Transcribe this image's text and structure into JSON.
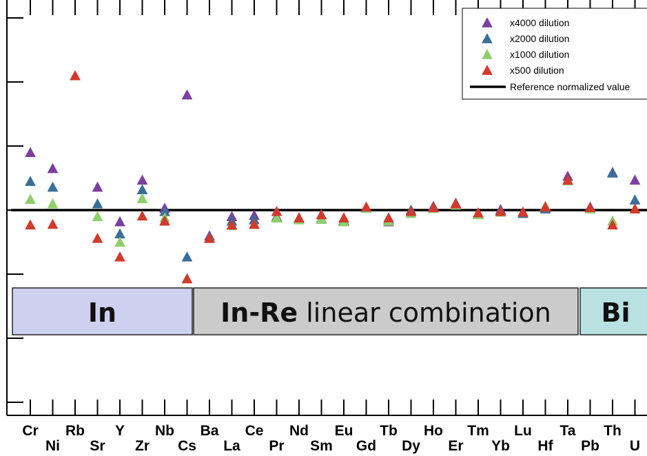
{
  "chart_data": {
    "type": "scatter",
    "categories": [
      "Cr",
      "Ni",
      "Rb",
      "Sr",
      "Y",
      "Zr",
      "Nb",
      "Cs",
      "Ba",
      "La",
      "Ce",
      "Pr",
      "Nd",
      "Sm",
      "Eu",
      "Gd",
      "Tb",
      "Dy",
      "Ho",
      "Er",
      "Tm",
      "Yb",
      "Lu",
      "Hf",
      "Ta",
      "Pb",
      "Th",
      "U"
    ],
    "ylim": [
      -3,
      3
    ],
    "series": [
      {
        "name": "x4000 dilution",
        "color": "#7b3f9e",
        "values": [
          0.9,
          0.65,
          null,
          0.36,
          -0.18,
          0.47,
          0.03,
          1.8,
          -0.4,
          -0.1,
          -0.08,
          -0.1,
          -0.12,
          -0.13,
          -0.17,
          0.04,
          -0.18,
          0.0,
          0.06,
          0.11,
          -0.06,
          0.01,
          -0.03,
          0.04,
          0.53,
          0.04,
          0.59,
          0.47
        ]
      },
      {
        "name": "x2000 dilution",
        "color": "#3a6e99",
        "values": [
          0.45,
          0.36,
          null,
          0.1,
          -0.37,
          0.32,
          -0.02,
          -0.73,
          -0.43,
          -0.17,
          -0.15,
          -0.12,
          -0.13,
          -0.14,
          -0.16,
          0.03,
          -0.15,
          0.0,
          0.05,
          0.09,
          -0.05,
          0.0,
          -0.05,
          0.02,
          0.46,
          0.05,
          0.58,
          0.16
        ]
      },
      {
        "name": "x1000 dilution",
        "color": "#8fcf6b",
        "values": [
          0.17,
          0.1,
          null,
          -0.1,
          -0.5,
          0.18,
          -0.12,
          -1.07,
          -0.44,
          -0.24,
          -0.22,
          -0.12,
          -0.15,
          -0.14,
          -0.18,
          0.03,
          -0.17,
          -0.05,
          0.03,
          0.08,
          -0.07,
          -0.03,
          -0.03,
          0.06,
          0.46,
          0.02,
          -0.17,
          null
        ]
      },
      {
        "name": "x500 dilution",
        "color": "#d13a2c",
        "values": [
          -0.23,
          -0.22,
          2.1,
          -0.44,
          -0.73,
          -0.09,
          -0.17,
          -1.07,
          -0.44,
          -0.23,
          -0.22,
          -0.02,
          -0.12,
          -0.07,
          -0.12,
          0.05,
          -0.12,
          -0.02,
          0.04,
          0.1,
          -0.04,
          -0.02,
          -0.03,
          0.05,
          0.47,
          0.04,
          -0.23,
          0.02
        ]
      }
    ],
    "reference": {
      "name": "Reference normalized value",
      "value": 0
    },
    "legend_position": "top-right",
    "grid": false
  },
  "bands": [
    {
      "bold": "In",
      "rest": "",
      "fill": "#cdd0ef"
    },
    {
      "bold": "In-Re",
      "rest": " linear combination",
      "fill": "#cbcbcb"
    },
    {
      "bold": "Bi",
      "rest": "",
      "fill": "#b9e1e2"
    }
  ]
}
